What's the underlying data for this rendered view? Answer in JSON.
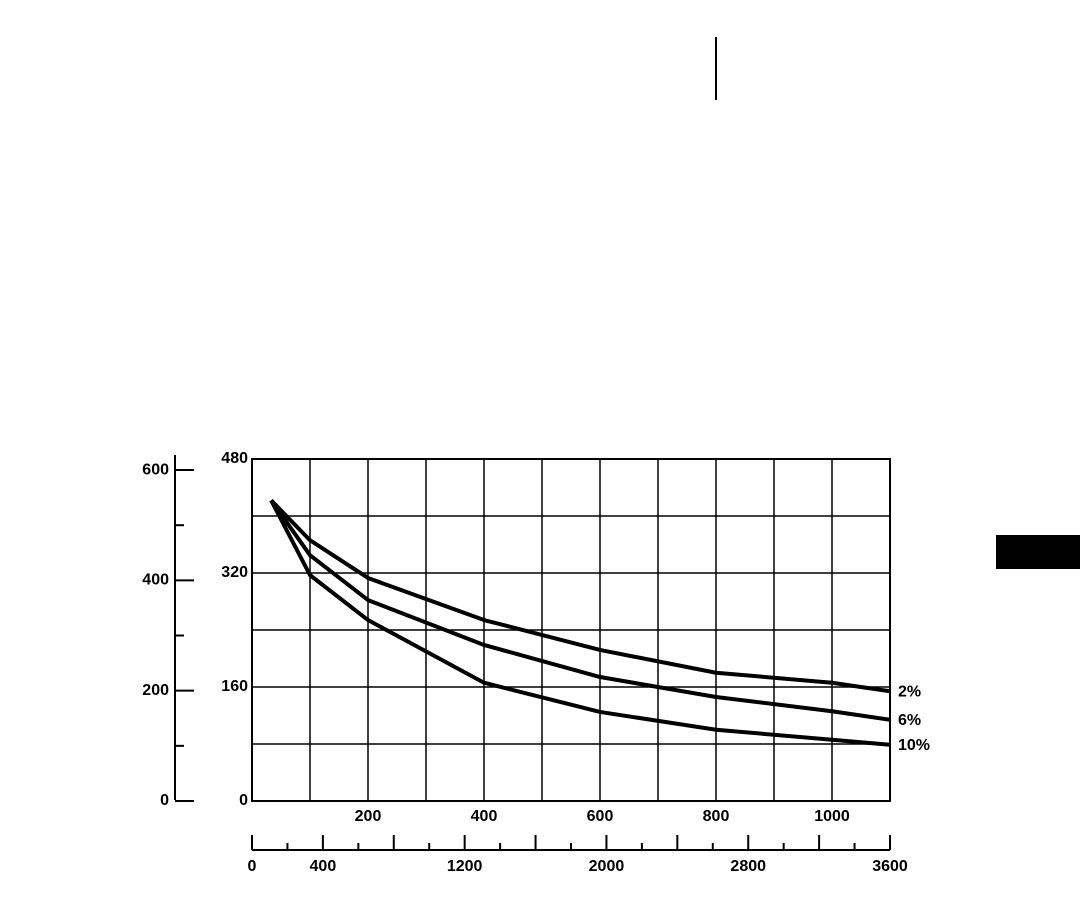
{
  "chart_data": {
    "type": "line",
    "x": [
      33,
      100,
      200,
      400,
      600,
      800,
      1000,
      1100
    ],
    "series": [
      {
        "name": "2%",
        "color": "#000000",
        "values": [
          422,
          366,
          313,
          254,
          212,
          180,
          166,
          154
        ]
      },
      {
        "name": "6%",
        "color": "#000000",
        "values": [
          422,
          345,
          282,
          219,
          174,
          146,
          126,
          114
        ]
      },
      {
        "name": "10%",
        "color": "#000000",
        "values": [
          422,
          317,
          254,
          166,
          125,
          100,
          86,
          79
        ]
      }
    ],
    "xlim": [
      0,
      1100
    ],
    "xticks": [
      200,
      400,
      600,
      800,
      1000
    ],
    "xgrid": [
      100,
      200,
      300,
      400,
      500,
      600,
      700,
      800,
      900,
      1000
    ],
    "ylim": [
      0,
      480
    ],
    "yticks": [
      0,
      160,
      320,
      480
    ],
    "ygrid": [
      80,
      160,
      240,
      320,
      400
    ],
    "y2lim": [
      0,
      620
    ],
    "y2ticks": [
      0,
      200,
      400,
      600
    ],
    "y2minor_ticks": [
      100,
      300,
      500
    ],
    "x2lim": [
      0,
      3600
    ],
    "x2ticks": [
      0,
      400,
      1200,
      2000,
      2800,
      3600
    ],
    "x2minor_ticks": [
      200,
      600,
      800,
      1000,
      1400,
      1600,
      1800,
      2200,
      2400,
      2600,
      3000,
      3200,
      3400
    ],
    "grid": true
  }
}
